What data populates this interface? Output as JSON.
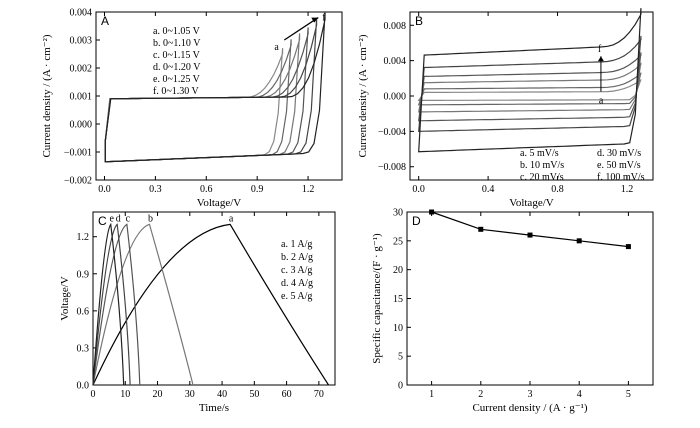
{
  "chart_data": [
    {
      "panel": "A",
      "type": "line",
      "xlabel": "Voltage/V",
      "ylabel": "Current density / (A · cm⁻²)",
      "xlim": [
        -0.05,
        1.4
      ],
      "ylim": [
        -0.002,
        0.004
      ],
      "xticks": [
        "0.0",
        "0.3",
        "0.6",
        "0.9",
        "1.2"
      ],
      "yticks": [
        "−0.002",
        "−0.001",
        "0.000",
        "0.001",
        "0.002",
        "0.003",
        "0.004"
      ],
      "legend": [
        "a. 0~1.05 V",
        "b. 0~1.10 V",
        "c. 0~1.15 V",
        "d. 0~1.20 V",
        "e. 0~1.25 V",
        "f. 0~1.30 V"
      ],
      "arrow_labels": [
        "a",
        "f"
      ],
      "series": [
        {
          "name": "a",
          "vmax": 1.05,
          "ipeak": 0.0026
        },
        {
          "name": "b",
          "vmax": 1.1,
          "ipeak": 0.0029
        },
        {
          "name": "c",
          "vmax": 1.15,
          "ipeak": 0.0031
        },
        {
          "name": "d",
          "vmax": 1.2,
          "ipeak": 0.0033
        },
        {
          "name": "e",
          "vmax": 1.25,
          "ipeak": 0.0036
        },
        {
          "name": "f",
          "vmax": 1.3,
          "ipeak": 0.0038
        }
      ]
    },
    {
      "panel": "B",
      "type": "line",
      "xlabel": "Voltage/V",
      "ylabel": "Current density / (A · cm⁻²)",
      "xlim": [
        -0.05,
        1.35
      ],
      "ylim": [
        -0.0095,
        0.0095
      ],
      "xticks": [
        "0.0",
        "0.4",
        "0.8",
        "1.2"
      ],
      "yticks": [
        "−0.008",
        "−0.004",
        "0.000",
        "0.004",
        "0.008"
      ],
      "legend": [
        "a. 5 mV/s",
        "b. 10 mV/s",
        "c. 20 mV/s",
        "d. 30 mV/s",
        "e. 50 mV/s",
        "f. 100 mV/s"
      ],
      "arrow_labels": [
        "a",
        "f"
      ],
      "series": [
        {
          "name": "a",
          "upper": 0.0004,
          "lower": -0.0005,
          "peak": 0.0018
        },
        {
          "name": "b",
          "upper": 0.0008,
          "lower": -0.001,
          "peak": 0.0025
        },
        {
          "name": "c",
          "upper": 0.0015,
          "lower": -0.0018,
          "peak": 0.0035
        },
        {
          "name": "d",
          "upper": 0.0022,
          "lower": -0.0028,
          "peak": 0.0045
        },
        {
          "name": "e",
          "upper": 0.0032,
          "lower": -0.004,
          "peak": 0.0062
        },
        {
          "name": "f",
          "upper": 0.0046,
          "lower": -0.0063,
          "peak": 0.009
        }
      ]
    },
    {
      "panel": "C",
      "type": "line",
      "xlabel": "Time/s",
      "ylabel": "Voltage/V",
      "xlim": [
        0,
        75
      ],
      "ylim": [
        0,
        1.4
      ],
      "xticks": [
        "0",
        "10",
        "20",
        "30",
        "40",
        "50",
        "60",
        "70"
      ],
      "yticks": [
        "0.0",
        "0.3",
        "0.6",
        "0.9",
        "1.2"
      ],
      "legend": [
        "a. 1 A/g",
        "b. 2 A/g",
        "c. 3 A/g",
        "d. 4 A/g",
        "e. 5 A/g"
      ],
      "series": [
        {
          "name": "a",
          "x": [
            0,
            42.5,
            73
          ],
          "y": [
            0,
            1.3,
            0
          ]
        },
        {
          "name": "b",
          "x": [
            0,
            17.5,
            31
          ],
          "y": [
            0,
            1.3,
            0
          ]
        },
        {
          "name": "c",
          "x": [
            0,
            10.5,
            14.5
          ],
          "y": [
            0,
            1.3,
            0
          ]
        },
        {
          "name": "d",
          "x": [
            0,
            7.5,
            11.5
          ],
          "y": [
            0,
            1.3,
            0
          ]
        },
        {
          "name": "e",
          "x": [
            0,
            5.5,
            9.5
          ],
          "y": [
            0,
            1.3,
            0
          ]
        }
      ]
    },
    {
      "panel": "D",
      "type": "line",
      "xlabel": "Current density / (A · g⁻¹)",
      "ylabel": "Specific capacitance/(F · g⁻¹)",
      "xlim": [
        0.5,
        5.5
      ],
      "ylim": [
        0,
        30
      ],
      "xticks": [
        "1",
        "2",
        "3",
        "4",
        "5"
      ],
      "yticks": [
        "0",
        "5",
        "10",
        "15",
        "20",
        "25",
        "30"
      ],
      "series": [
        {
          "name": "",
          "x": [
            1,
            2,
            3,
            4,
            5
          ],
          "y": [
            30,
            27,
            26,
            25,
            24
          ]
        }
      ]
    }
  ]
}
